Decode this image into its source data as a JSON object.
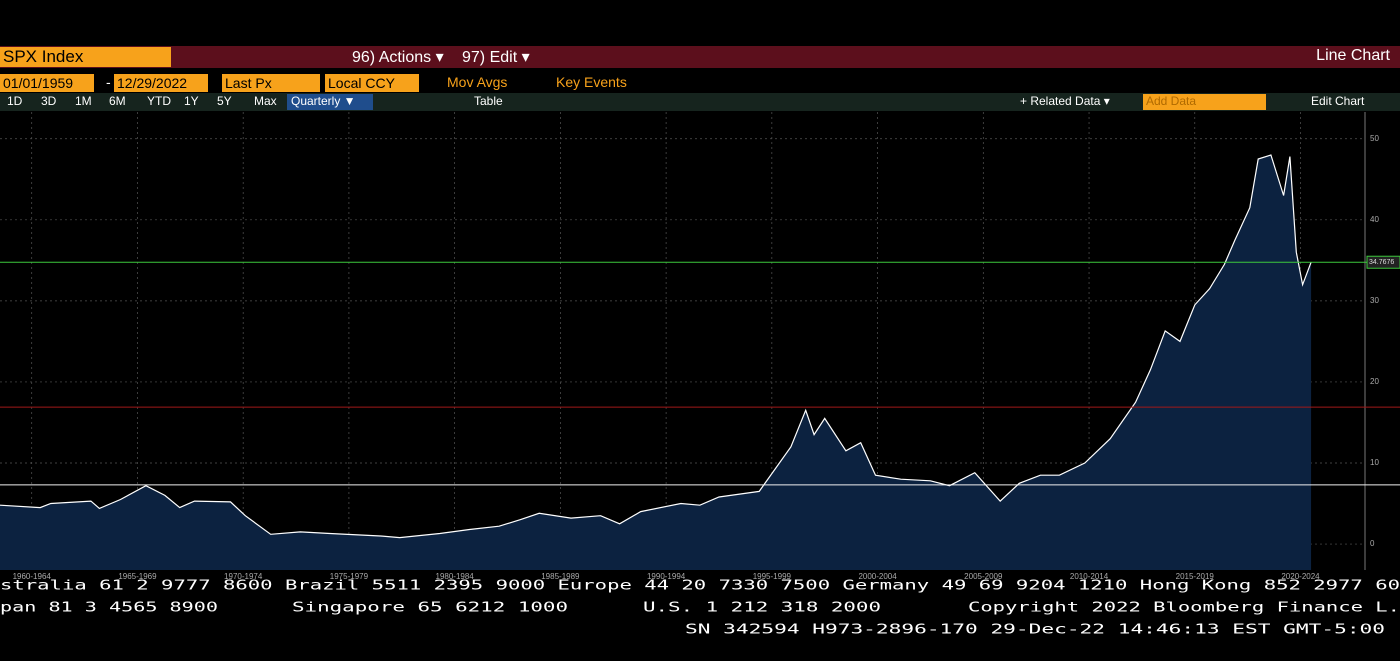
{
  "toolbar": {
    "ticker": "SPX Index",
    "actions": "96) Actions ▾",
    "edit": "97) Edit ▾",
    "view": "Line Chart",
    "start_date": "01/01/1959",
    "date_sep": "-",
    "end_date": "12/29/2022",
    "field": "Last Px",
    "currency": "Local CCY",
    "mov_avgs": "Mov Avgs",
    "key_events": "Key Events",
    "periods": [
      "1D",
      "3D",
      "1M",
      "6M",
      "YTD",
      "1Y",
      "5Y",
      "Max"
    ],
    "frequency": "Quarterly ▼",
    "table": "Table",
    "related_data": "+ Related Data ▾",
    "add_data": "Add Data",
    "edit_chart": "Edit Chart"
  },
  "chart_data": {
    "type": "area",
    "x": [
      1961.0,
      1962.9,
      1963.4,
      1965.3,
      1965.7,
      1966.7,
      1967.9,
      1968.8,
      1969.5,
      1970.2,
      1971.9,
      1972.6,
      1973.8,
      1975.2,
      1976.6,
      1979.0,
      1979.9,
      1981.8,
      1983.2,
      1984.6,
      1985.6,
      1986.5,
      1988.0,
      1989.4,
      1990.3,
      1991.3,
      1993.2,
      1994.1,
      1995.0,
      1996.9,
      1998.4,
      1999.1,
      1999.5,
      2000.0,
      2001.0,
      2001.7,
      2002.4,
      2003.6,
      2005.0,
      2005.9,
      2007.1,
      2008.3,
      2009.2,
      2010.2,
      2011.1,
      2012.3,
      2013.5,
      2014.7,
      2015.4,
      2016.1,
      2016.8,
      2017.5,
      2018.2,
      2018.9,
      2019.4,
      2020.1,
      2020.5,
      2021.1,
      2021.7,
      2022.0,
      2022.3,
      2022.6,
      2023.0
    ],
    "values": [
      4.8,
      4.5,
      5.0,
      5.3,
      4.4,
      5.5,
      7.2,
      6.0,
      4.5,
      5.3,
      5.2,
      3.5,
      1.2,
      1.5,
      1.3,
      1.0,
      0.8,
      1.3,
      1.8,
      2.2,
      3.0,
      3.8,
      3.2,
      3.5,
      2.5,
      4.0,
      5.0,
      4.8,
      5.8,
      6.5,
      12.0,
      16.5,
      13.5,
      15.5,
      11.5,
      12.5,
      8.5,
      8.0,
      7.8,
      7.2,
      8.8,
      5.3,
      7.5,
      8.5,
      8.5,
      10.0,
      13.0,
      17.5,
      21.5,
      26.3,
      25.0,
      29.5,
      31.5,
      34.5,
      37.5,
      41.5,
      47.5,
      48.0,
      43.0,
      47.8,
      36.0,
      32.0,
      34.7676
    ],
    "color": "#0c2240",
    "line_color": "#ffffff",
    "xlim": [
      1961.0,
      2025.55
    ],
    "ylim": [
      -3.2,
      53.3
    ],
    "xticks": [
      {
        "value": 1962.5,
        "label": "1960-1964"
      },
      {
        "value": 1967.5,
        "label": "1965-1969"
      },
      {
        "value": 1972.5,
        "label": "1970-1974"
      },
      {
        "value": 1977.5,
        "label": "1975-1979"
      },
      {
        "value": 1982.5,
        "label": "1980-1984"
      },
      {
        "value": 1987.5,
        "label": "1985-1989"
      },
      {
        "value": 1992.5,
        "label": "1990-1994"
      },
      {
        "value": 1997.5,
        "label": "1995-1999"
      },
      {
        "value": 2002.5,
        "label": "2000-2004"
      },
      {
        "value": 2007.5,
        "label": "2005-2009"
      },
      {
        "value": 2012.5,
        "label": "2010-2014"
      },
      {
        "value": 2017.5,
        "label": "2015-2019"
      },
      {
        "value": 2022.5,
        "label": "2020-2024"
      }
    ],
    "yticks": [
      0,
      10,
      20,
      30,
      40,
      50
    ],
    "grid": true,
    "reference_lines": [
      {
        "value": 34.7676,
        "color": "#3cc83c"
      },
      {
        "value": 16.9,
        "color": "#a01818"
      },
      {
        "value": 7.3,
        "color": "#f0f0f0"
      }
    ]
  },
  "footer": {
    "line1": "stralia 61 2 9777 8600 Brazil 5511 2395 9000 Europe 44 20 7330 7500 Germany 49 69 9204 1210 Hong Kong 852 2977 60",
    "line2": [
      "pan 81 3 4565 8900",
      "Singapore 65 6212 1000",
      "U.S. 1 212 318 2000",
      "Copyright 2022 Bloomberg Finance L."
    ],
    "line3": "SN 342594 H973-2896-170 29-Dec-22 14:46:13 EST  GMT-5:00"
  }
}
